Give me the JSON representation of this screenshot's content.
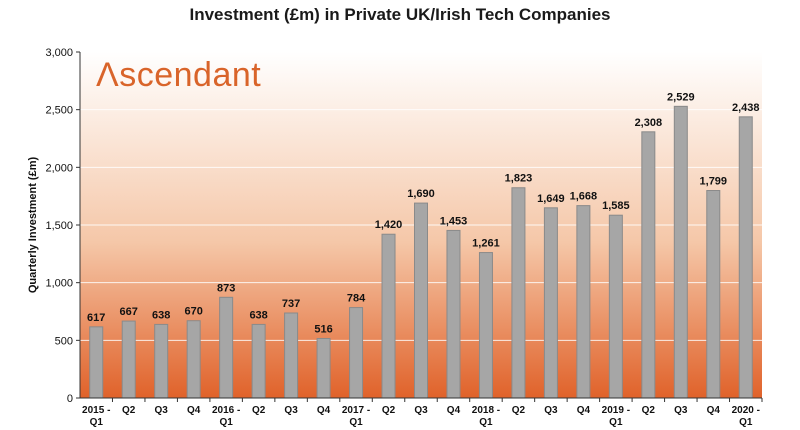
{
  "colors": {
    "bar": "#a6a6a6",
    "bar_stroke": "#8a8a8a",
    "bg_top": "#ffffff",
    "bg_bottom": "#e0622a",
    "brand": "#d9642a",
    "grid": "#ffffff"
  },
  "logo": {
    "text": "scendant",
    "mark": "Λ"
  },
  "chart_data": {
    "type": "bar",
    "title": "Investment (£m) in Private UK/Irish Tech Companies",
    "ylabel": "Quarterly Investment (£m)",
    "xlabel": "",
    "ylim": [
      0,
      3000
    ],
    "yticks": [
      0,
      500,
      1000,
      1500,
      2000,
      2500,
      3000
    ],
    "ytick_labels": [
      "0",
      "500",
      "1,000",
      "1,500",
      "2,000",
      "2,500",
      "3,000"
    ],
    "grid": true,
    "categories": [
      [
        "2015 -",
        "Q1"
      ],
      [
        "Q2"
      ],
      [
        "Q3"
      ],
      [
        "Q4"
      ],
      [
        "2016 -",
        "Q1"
      ],
      [
        "Q2"
      ],
      [
        "Q3"
      ],
      [
        "Q4"
      ],
      [
        "2017 -",
        "Q1"
      ],
      [
        "Q2"
      ],
      [
        "Q3"
      ],
      [
        "Q4"
      ],
      [
        "2018 -",
        "Q1"
      ],
      [
        "Q2"
      ],
      [
        "Q3"
      ],
      [
        "Q4"
      ],
      [
        "2019 -",
        "Q1"
      ],
      [
        "Q2"
      ],
      [
        "Q3"
      ],
      [
        "Q4"
      ],
      [
        "2020 -",
        "Q1"
      ]
    ],
    "values": [
      617,
      667,
      638,
      670,
      873,
      638,
      737,
      516,
      784,
      1420,
      1690,
      1453,
      1261,
      1823,
      1649,
      1668,
      1585,
      2308,
      2529,
      1799,
      2438
    ],
    "value_labels": [
      "617",
      "667",
      "638",
      "670",
      "873",
      "638",
      "737",
      "516",
      "784",
      "1,420",
      "1,690",
      "1,453",
      "1,261",
      "1,823",
      "1,649",
      "1,668",
      "1,585",
      "2,308",
      "2,529",
      "1,799",
      "2,438"
    ]
  }
}
